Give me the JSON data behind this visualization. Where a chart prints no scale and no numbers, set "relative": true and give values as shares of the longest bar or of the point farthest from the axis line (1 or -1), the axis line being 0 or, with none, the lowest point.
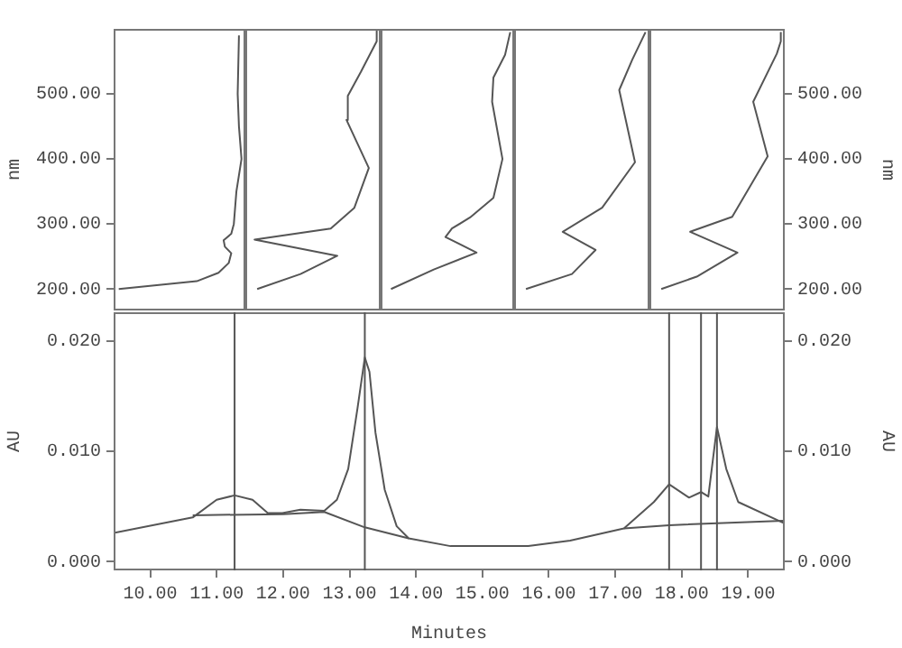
{
  "chart_data": [
    {
      "type": "line",
      "orientation": "horizontal",
      "relative": true,
      "color": "#555555",
      "ylabel": "nm",
      "ylim": [
        167,
        600
      ],
      "yticks": [
        {
          "value": 200,
          "label": "200.00"
        },
        {
          "value": 300,
          "label": "300.00"
        },
        {
          "value": 400,
          "label": "400.00"
        },
        {
          "value": 500,
          "label": "500.00"
        }
      ],
      "tick_labels": "y",
      "x": [
        200,
        212,
        225,
        240,
        255,
        265,
        275,
        285,
        300,
        350,
        400,
        450,
        500,
        590
      ],
      "values": [
        0.04,
        0.65,
        0.82,
        0.9,
        0.92,
        0.87,
        0.86,
        0.92,
        0.94,
        0.96,
        1.0,
        0.98,
        0.97,
        0.98
      ]
    },
    {
      "type": "line",
      "orientation": "horizontal",
      "relative": true,
      "color": "#555555",
      "ylim": [
        167,
        600
      ],
      "tick_labels": false,
      "x": [
        200,
        223,
        251,
        276,
        293,
        325,
        386,
        460,
        497,
        534,
        581,
        600
      ],
      "values": [
        0.09,
        0.42,
        0.7,
        0.07,
        0.65,
        0.83,
        0.94,
        0.77,
        0.78,
        0.88,
        1.0,
        1.0
      ]
    },
    {
      "type": "line",
      "orientation": "horizontal",
      "relative": true,
      "color": "#555555",
      "ylim": [
        167,
        600
      ],
      "tick_labels": false,
      "x": [
        200,
        230,
        256,
        280,
        293,
        310,
        340,
        400,
        488,
        525,
        560,
        595
      ],
      "values": [
        0.08,
        0.41,
        0.74,
        0.5,
        0.55,
        0.69,
        0.87,
        0.94,
        0.86,
        0.87,
        0.96,
        1.0
      ]
    },
    {
      "type": "line",
      "orientation": "horizontal",
      "relative": true,
      "color": "#555555",
      "ylim": [
        167,
        600
      ],
      "tick_labels": false,
      "x": [
        200,
        223,
        260,
        288,
        325,
        395,
        506,
        553,
        595
      ],
      "values": [
        0.09,
        0.44,
        0.62,
        0.37,
        0.67,
        0.92,
        0.8,
        0.9,
        1.0
      ]
    },
    {
      "type": "line",
      "orientation": "horizontal",
      "relative": true,
      "color": "#555555",
      "ylabel": "nm",
      "ylim": [
        167,
        600
      ],
      "yticks": [
        {
          "value": 200,
          "label": "200.00"
        },
        {
          "value": 300,
          "label": "300.00"
        },
        {
          "value": 400,
          "label": "400.00"
        },
        {
          "value": 500,
          "label": "500.00"
        }
      ],
      "tick_labels": "y",
      "x": [
        200,
        219,
        256,
        288,
        311,
        404,
        488,
        562,
        581,
        595
      ],
      "values": [
        0.09,
        0.36,
        0.67,
        0.31,
        0.63,
        0.9,
        0.79,
        0.97,
        1.0,
        1.0
      ]
    },
    {
      "type": "line",
      "xlabel": "Minutes",
      "ylabel": "AU",
      "y2label": "AU",
      "xlim": [
        9.45,
        19.55
      ],
      "xticks": [
        {
          "value": 10,
          "label": "10.00"
        },
        {
          "value": 11,
          "label": "11.00"
        },
        {
          "value": 12,
          "label": "12.00"
        },
        {
          "value": 13,
          "label": "13.00"
        },
        {
          "value": 14,
          "label": "14.00"
        },
        {
          "value": 15,
          "label": "15.00"
        },
        {
          "value": 16,
          "label": "16.00"
        },
        {
          "value": 17,
          "label": "17.00"
        },
        {
          "value": 18,
          "label": "18.00"
        },
        {
          "value": 19,
          "label": "19.00"
        }
      ],
      "ylim": [
        -0.0008,
        0.0226
      ],
      "yticks": [
        {
          "value": 0,
          "label": "0.000"
        },
        {
          "value": 0.01,
          "label": "0.010"
        },
        {
          "value": 0.02,
          "label": "0.020"
        }
      ],
      "y2lim": [
        -0.0008,
        0.0226
      ],
      "y2ticks": [
        {
          "value": 0,
          "label": "0.000"
        },
        {
          "value": 0.01,
          "label": "0.010"
        },
        {
          "value": 0.02,
          "label": "0.020"
        }
      ],
      "ref_lines": [
        {
          "axis": "x",
          "value": 11.27
        },
        {
          "axis": "x",
          "value": 13.23
        },
        {
          "axis": "x",
          "value": 17.81
        },
        {
          "axis": "x",
          "value": 18.29
        },
        {
          "axis": "x",
          "value": 18.53
        }
      ],
      "series": [
        {
          "color": "#555555",
          "x": [
            9.45,
            10.64,
            11.0,
            11.27,
            11.54,
            11.77,
            11.99,
            12.26,
            12.62,
            12.81,
            12.98,
            13.12,
            13.23,
            13.3,
            13.39,
            13.53,
            13.71,
            13.89,
            14.52,
            15.69,
            16.32,
            17.13,
            17.58,
            17.81,
            18.11,
            18.29,
            18.4,
            18.53,
            18.67,
            18.85,
            19.53
          ],
          "values": [
            0.0026,
            0.004,
            0.0056,
            0.006,
            0.0056,
            0.0044,
            0.0044,
            0.0047,
            0.0046,
            0.0056,
            0.0084,
            0.0139,
            0.0185,
            0.0172,
            0.0117,
            0.0065,
            0.0032,
            0.0021,
            0.0014,
            0.0014,
            0.0019,
            0.003,
            0.0054,
            0.007,
            0.0058,
            0.0063,
            0.0059,
            0.0122,
            0.0084,
            0.0054,
            0.0035
          ]
        },
        {
          "color": "#555555",
          "x": [
            10.64,
            12.0,
            12.62,
            13.23,
            13.89
          ],
          "values": [
            0.0042,
            0.0043,
            0.0045,
            0.0031,
            0.0021
          ]
        },
        {
          "color": "#555555",
          "x": [
            17.13,
            17.81,
            19.53
          ],
          "values": [
            0.003,
            0.0033,
            0.0037
          ]
        }
      ]
    }
  ]
}
